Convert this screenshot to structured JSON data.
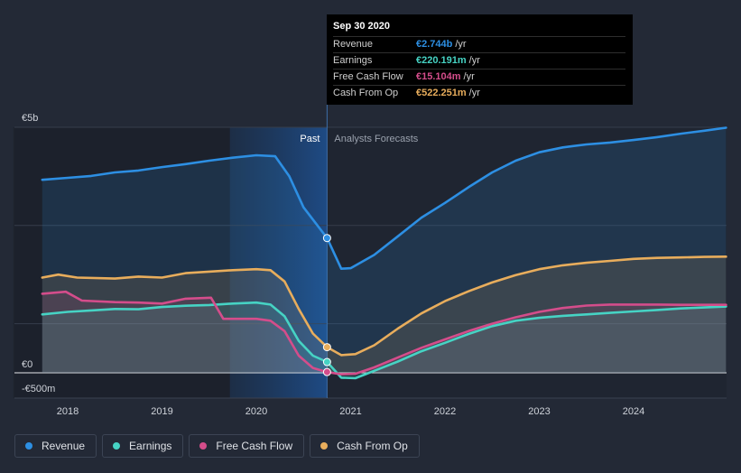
{
  "chart_data": {
    "type": "area",
    "title": "",
    "xlabel": "",
    "ylabel": "",
    "x_ticks": [
      "2018",
      "2019",
      "2020",
      "2021",
      "2022",
      "2023",
      "2024"
    ],
    "x_range": [
      2017.73,
      2024.98
    ],
    "y_ticks": [
      {
        "value": 5000,
        "label": "€5b"
      },
      {
        "value": 0,
        "label": "€0"
      },
      {
        "value": -500,
        "label": "-€500m"
      }
    ],
    "ylim": [
      -500,
      5000
    ],
    "grid": true,
    "divider_date": 2020.75,
    "shaded_from": 2019.72,
    "region_labels": {
      "past": "Past",
      "forecast": "Analysts Forecasts"
    },
    "series": [
      {
        "name": "Revenue",
        "color": "#2d8fe3",
        "points": [
          [
            2017.73,
            3930
          ],
          [
            2018.0,
            3970
          ],
          [
            2018.25,
            4010
          ],
          [
            2018.5,
            4080
          ],
          [
            2018.75,
            4120
          ],
          [
            2019.0,
            4190
          ],
          [
            2019.25,
            4250
          ],
          [
            2019.5,
            4320
          ],
          [
            2019.75,
            4380
          ],
          [
            2020.0,
            4430
          ],
          [
            2020.2,
            4410
          ],
          [
            2020.35,
            4000
          ],
          [
            2020.5,
            3370
          ],
          [
            2020.75,
            2744
          ],
          [
            2020.9,
            2120
          ],
          [
            2021.0,
            2130
          ],
          [
            2021.25,
            2400
          ],
          [
            2021.5,
            2780
          ],
          [
            2021.75,
            3160
          ],
          [
            2022.0,
            3460
          ],
          [
            2022.25,
            3780
          ],
          [
            2022.5,
            4080
          ],
          [
            2022.75,
            4320
          ],
          [
            2023.0,
            4490
          ],
          [
            2023.25,
            4590
          ],
          [
            2023.5,
            4650
          ],
          [
            2023.75,
            4690
          ],
          [
            2024.0,
            4740
          ],
          [
            2024.25,
            4800
          ],
          [
            2024.5,
            4870
          ],
          [
            2024.75,
            4930
          ],
          [
            2024.98,
            4990
          ]
        ]
      },
      {
        "name": "Earnings",
        "color": "#46d3c4",
        "points": [
          [
            2017.73,
            1190
          ],
          [
            2018.0,
            1240
          ],
          [
            2018.25,
            1270
          ],
          [
            2018.5,
            1300
          ],
          [
            2018.75,
            1295
          ],
          [
            2019.0,
            1340
          ],
          [
            2019.25,
            1365
          ],
          [
            2019.5,
            1380
          ],
          [
            2019.75,
            1410
          ],
          [
            2020.0,
            1430
          ],
          [
            2020.15,
            1390
          ],
          [
            2020.3,
            1150
          ],
          [
            2020.45,
            650
          ],
          [
            2020.6,
            350
          ],
          [
            2020.75,
            220
          ],
          [
            2020.9,
            -100
          ],
          [
            2021.05,
            -110
          ],
          [
            2021.25,
            40
          ],
          [
            2021.5,
            230
          ],
          [
            2021.75,
            440
          ],
          [
            2022.0,
            610
          ],
          [
            2022.25,
            790
          ],
          [
            2022.5,
            950
          ],
          [
            2022.75,
            1060
          ],
          [
            2023.0,
            1120
          ],
          [
            2023.25,
            1160
          ],
          [
            2023.5,
            1190
          ],
          [
            2023.75,
            1220
          ],
          [
            2024.0,
            1250
          ],
          [
            2024.25,
            1280
          ],
          [
            2024.5,
            1310
          ],
          [
            2024.75,
            1330
          ],
          [
            2024.98,
            1350
          ]
        ]
      },
      {
        "name": "Free Cash Flow",
        "color": "#d44d8b",
        "points": [
          [
            2017.73,
            1610
          ],
          [
            2017.98,
            1650
          ],
          [
            2018.15,
            1470
          ],
          [
            2018.5,
            1440
          ],
          [
            2018.75,
            1430
          ],
          [
            2019.0,
            1410
          ],
          [
            2019.25,
            1510
          ],
          [
            2019.52,
            1530
          ],
          [
            2019.65,
            1100
          ],
          [
            2019.75,
            1100
          ],
          [
            2020.0,
            1100
          ],
          [
            2020.15,
            1060
          ],
          [
            2020.3,
            850
          ],
          [
            2020.45,
            350
          ],
          [
            2020.6,
            100
          ],
          [
            2020.75,
            15
          ],
          [
            2020.9,
            -30
          ],
          [
            2021.05,
            -20
          ],
          [
            2021.25,
            110
          ],
          [
            2021.5,
            310
          ],
          [
            2021.75,
            510
          ],
          [
            2022.0,
            680
          ],
          [
            2022.25,
            850
          ],
          [
            2022.5,
            1000
          ],
          [
            2022.75,
            1130
          ],
          [
            2023.0,
            1240
          ],
          [
            2023.25,
            1320
          ],
          [
            2023.5,
            1370
          ],
          [
            2023.75,
            1390
          ],
          [
            2024.0,
            1390
          ],
          [
            2024.25,
            1390
          ],
          [
            2024.5,
            1385
          ],
          [
            2024.75,
            1385
          ],
          [
            2024.98,
            1385
          ]
        ]
      },
      {
        "name": "Cash From Op",
        "color": "#e8ad5c",
        "points": [
          [
            2017.73,
            1940
          ],
          [
            2017.9,
            2000
          ],
          [
            2018.1,
            1940
          ],
          [
            2018.5,
            1920
          ],
          [
            2018.75,
            1960
          ],
          [
            2019.0,
            1940
          ],
          [
            2019.25,
            2030
          ],
          [
            2019.5,
            2060
          ],
          [
            2019.75,
            2090
          ],
          [
            2020.0,
            2110
          ],
          [
            2020.15,
            2090
          ],
          [
            2020.3,
            1860
          ],
          [
            2020.45,
            1300
          ],
          [
            2020.6,
            800
          ],
          [
            2020.75,
            522
          ],
          [
            2020.9,
            360
          ],
          [
            2021.05,
            380
          ],
          [
            2021.25,
            560
          ],
          [
            2021.5,
            900
          ],
          [
            2021.75,
            1210
          ],
          [
            2022.0,
            1460
          ],
          [
            2022.25,
            1660
          ],
          [
            2022.5,
            1840
          ],
          [
            2022.75,
            1990
          ],
          [
            2023.0,
            2110
          ],
          [
            2023.25,
            2190
          ],
          [
            2023.5,
            2240
          ],
          [
            2023.75,
            2280
          ],
          [
            2024.0,
            2320
          ],
          [
            2024.25,
            2340
          ],
          [
            2024.5,
            2350
          ],
          [
            2024.75,
            2360
          ],
          [
            2024.98,
            2365
          ]
        ]
      }
    ],
    "tooltip": {
      "date": "Sep 30 2020",
      "rows": [
        {
          "name": "Revenue",
          "value": "€2.744b",
          "unit": "/yr",
          "color": "#2d8fe3"
        },
        {
          "name": "Earnings",
          "value": "€220.191m",
          "unit": "/yr",
          "color": "#46d3c4"
        },
        {
          "name": "Free Cash Flow",
          "value": "€15.104m",
          "unit": "/yr",
          "color": "#d44d8b"
        },
        {
          "name": "Cash From Op",
          "value": "€522.251m",
          "unit": "/yr",
          "color": "#e8ad5c"
        }
      ]
    }
  },
  "legend": [
    {
      "label": "Revenue",
      "color": "#2d8fe3"
    },
    {
      "label": "Earnings",
      "color": "#46d3c4"
    },
    {
      "label": "Free Cash Flow",
      "color": "#d44d8b"
    },
    {
      "label": "Cash From Op",
      "color": "#e8ad5c"
    }
  ]
}
